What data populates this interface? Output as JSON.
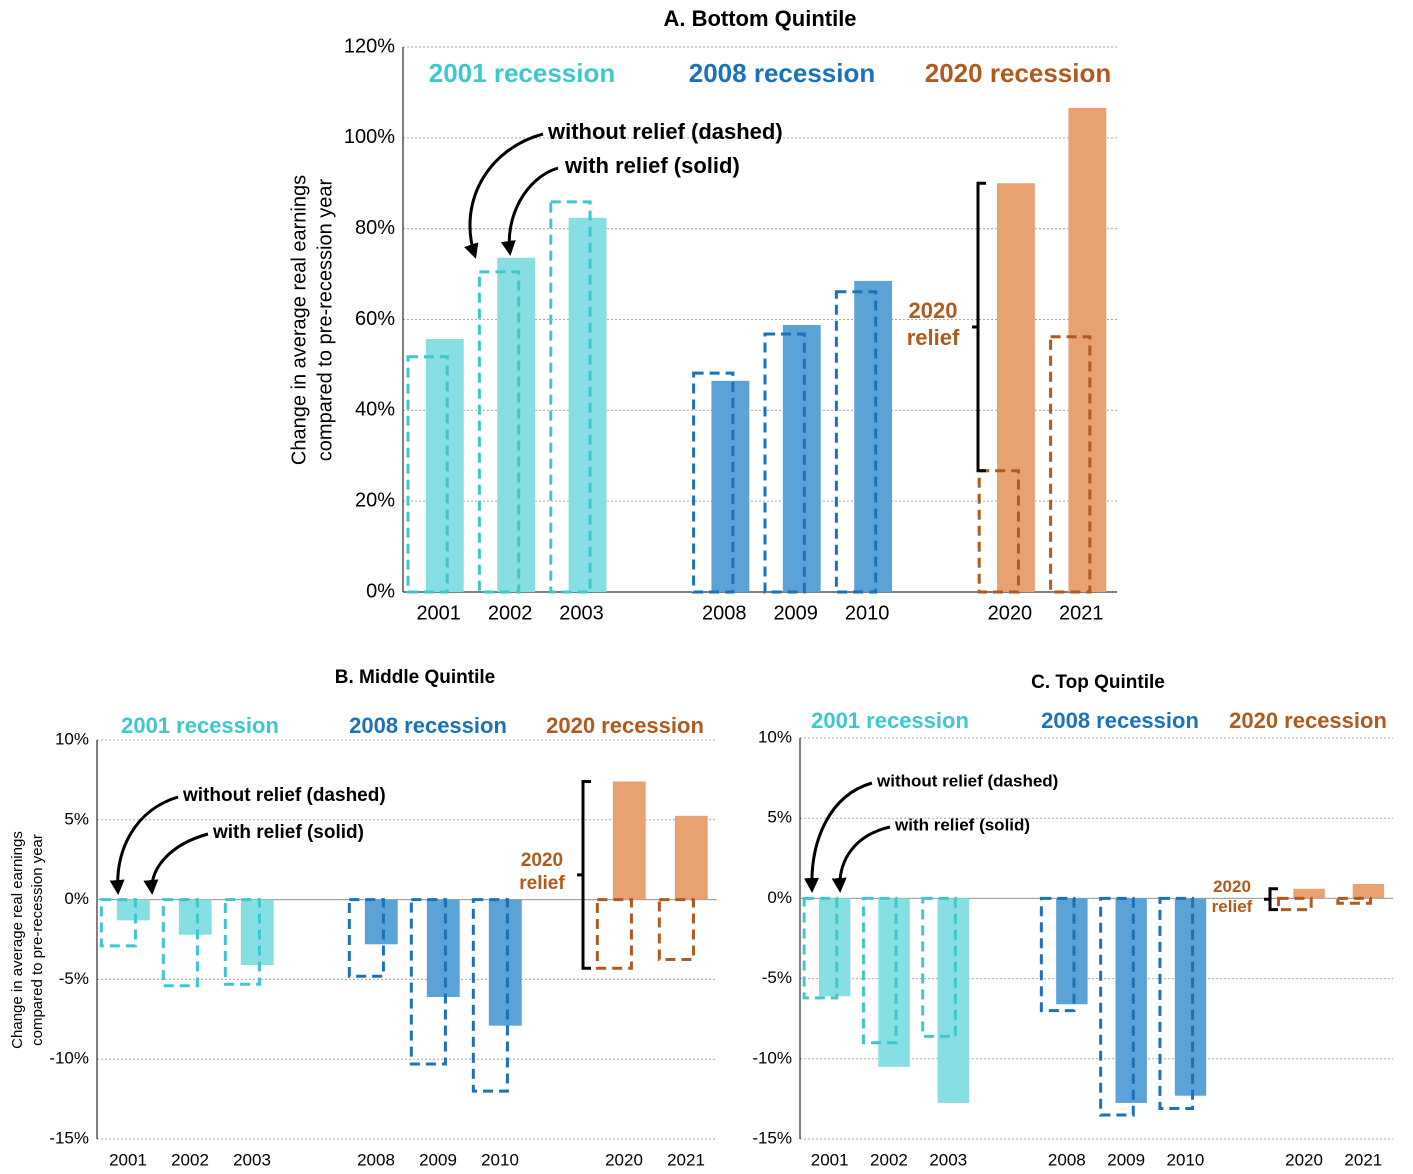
{
  "chart_data": [
    {
      "type": "bar",
      "title": "A. Bottom Quintile",
      "y_label": [
        "Change in average real earnings",
        "compared to pre-recession year"
      ],
      "ylim": [
        0,
        120
      ],
      "yticks": [
        {
          "value": 0,
          "label": "0%"
        },
        {
          "value": 20,
          "label": "20%"
        },
        {
          "value": 40,
          "label": "40%"
        },
        {
          "value": 60,
          "label": "60%"
        },
        {
          "value": 80,
          "label": "80%"
        },
        {
          "value": 100,
          "label": "100%"
        },
        {
          "value": 120,
          "label": "120%"
        }
      ],
      "grid": true,
      "groups": [
        {
          "name": "2001 recession",
          "color": "#86dfe2",
          "line_color": "#3cc8cc",
          "categories": [
            "2001",
            "2002",
            "2003"
          ],
          "values": [
            55.7,
            73.6,
            82.4
          ],
          "values_without_relief": [
            51.8,
            70.5,
            85.9
          ]
        },
        {
          "name": "2008 recession",
          "color": "#5ba3d6",
          "line_color": "#1a72bb",
          "categories": [
            "2008",
            "2009",
            "2010"
          ],
          "values": [
            46.5,
            58.8,
            68.5
          ],
          "values_without_relief": [
            48.2,
            56.8,
            66.1
          ]
        },
        {
          "name": "2020 recession",
          "color": "#e8a272",
          "line_color": "#b05a1e",
          "categories": [
            "2020",
            "2021"
          ],
          "values": [
            90,
            106.6
          ],
          "values_without_relief": [
            26.7,
            56.2
          ]
        }
      ],
      "annotations": [
        "without relief (dashed)",
        "with relief (solid)"
      ],
      "relief_label": "2020 relief"
    },
    {
      "type": "bar",
      "title": "B. Middle Quintile",
      "y_label": [
        "Change in average real earnings",
        "compared to pre-recession year"
      ],
      "ylim": [
        -15,
        10
      ],
      "yticks": [
        {
          "value": -15,
          "label": "-15%"
        },
        {
          "value": -10,
          "label": "-10%"
        },
        {
          "value": -5,
          "label": "-5%"
        },
        {
          "value": 0,
          "label": "0%"
        },
        {
          "value": 5,
          "label": "5%"
        },
        {
          "value": 10,
          "label": "10%"
        }
      ],
      "grid": true,
      "groups": [
        {
          "name": "2001 recession",
          "color": "#86dfe2",
          "line_color": "#3cc8cc",
          "categories": [
            "2001",
            "2002",
            "2003"
          ],
          "values": [
            -1.3,
            -2.2,
            -4.1
          ],
          "values_without_relief": [
            -2.9,
            -5.4,
            -5.3
          ]
        },
        {
          "name": "2008 recession",
          "color": "#5ba3d6",
          "line_color": "#1a72bb",
          "categories": [
            "2008",
            "2009",
            "2010"
          ],
          "values": [
            -2.8,
            -6.1,
            -7.9
          ],
          "values_without_relief": [
            -4.8,
            -10.3,
            -12
          ]
        },
        {
          "name": "2020 recession",
          "color": "#e8a272",
          "line_color": "#b05a1e",
          "categories": [
            "2020",
            "2021"
          ],
          "values": [
            7.4,
            5.25
          ],
          "values_without_relief": [
            -4.3,
            -3.75
          ]
        }
      ],
      "annotations": [
        "without relief (dashed)",
        "with relief (solid)"
      ],
      "relief_label": "2020 relief"
    },
    {
      "type": "bar",
      "title": "C. Top Quintile",
      "ylim": [
        -15,
        10
      ],
      "yticks": [
        {
          "value": -15,
          "label": "-15%"
        },
        {
          "value": -10,
          "label": "-10%"
        },
        {
          "value": -5,
          "label": "-5%"
        },
        {
          "value": 0,
          "label": "0%"
        },
        {
          "value": 5,
          "label": "5%"
        },
        {
          "value": 10,
          "label": "10%"
        }
      ],
      "grid": true,
      "groups": [
        {
          "name": "2001 recession",
          "color": "#86dfe2",
          "line_color": "#3cc8cc",
          "categories": [
            "2001",
            "2002",
            "2003"
          ],
          "values": [
            -6.1,
            -10.5,
            -12.75
          ],
          "values_without_relief": [
            -6.2,
            -9,
            -8.6
          ]
        },
        {
          "name": "2008 recession",
          "color": "#5ba3d6",
          "line_color": "#1a72bb",
          "categories": [
            "2008",
            "2009",
            "2010"
          ],
          "values": [
            -6.6,
            -12.75,
            -12.3
          ],
          "values_without_relief": [
            -7,
            -13.5,
            -13.1
          ]
        },
        {
          "name": "2020 recession",
          "color": "#e8a272",
          "line_color": "#b05a1e",
          "categories": [
            "2020",
            "2021"
          ],
          "values": [
            0.6,
            0.9
          ],
          "values_without_relief": [
            -0.7,
            -0.3
          ]
        }
      ],
      "annotations": [
        "without relief (dashed)",
        "with relief (solid)"
      ],
      "relief_label": "2020 relief"
    }
  ]
}
